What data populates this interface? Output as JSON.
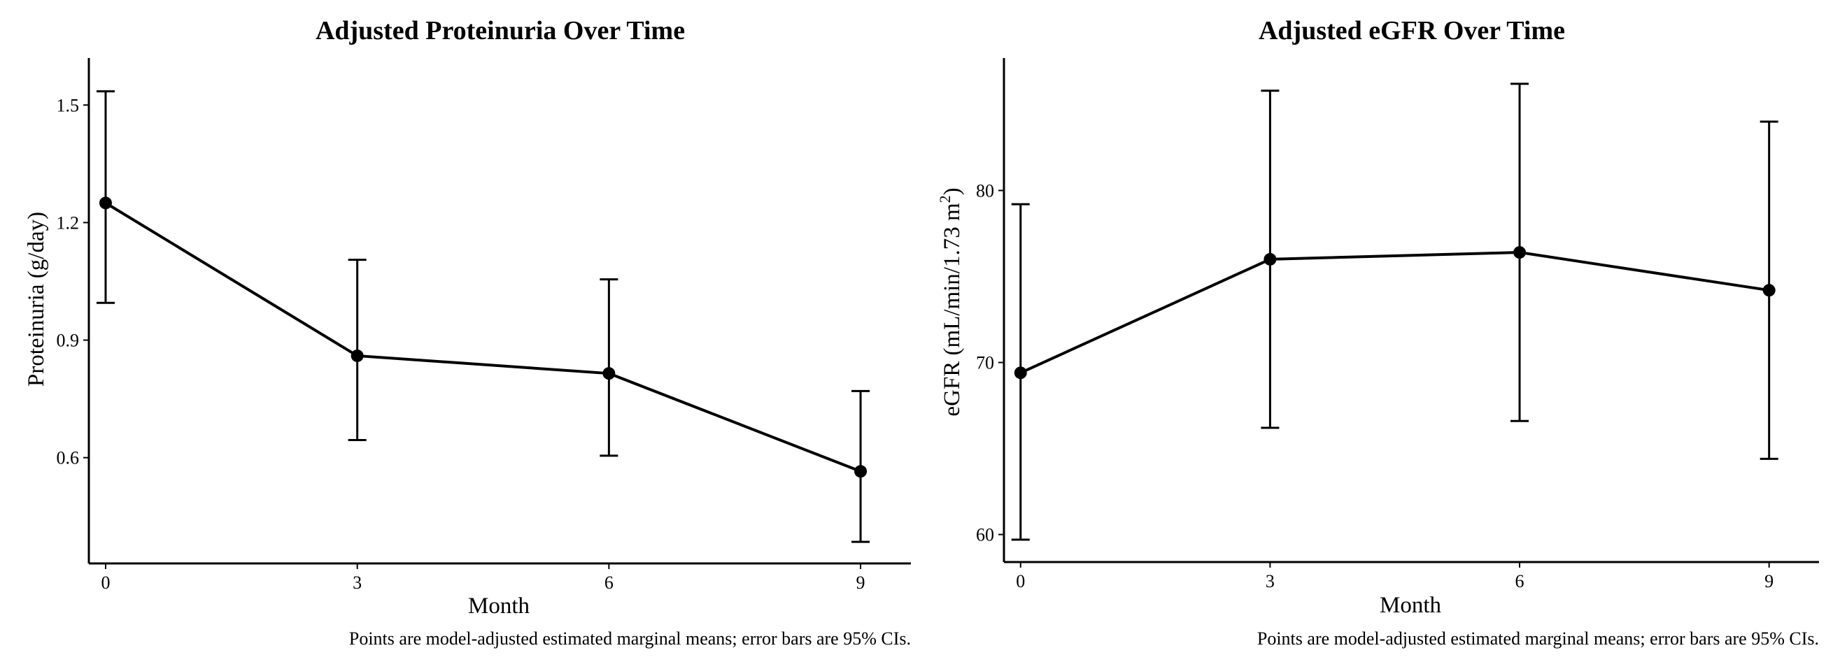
{
  "chart_data": [
    {
      "type": "line",
      "title": "Adjusted Proteinuria Over Time",
      "xlabel": "Month",
      "ylabel": "Proteinuria (g/day)",
      "caption": "Points are model-adjusted estimated marginal means; error bars are 95% CIs.",
      "x": [
        0,
        3,
        6,
        9
      ],
      "x_ticks": [
        "0",
        "3",
        "6",
        "9"
      ],
      "y_ticks": [
        "0.6",
        "0.9",
        "1.2",
        "1.5"
      ],
      "y_tick_values": [
        0.6,
        0.9,
        1.2,
        1.5
      ],
      "xlim": [
        -0.2,
        9.6
      ],
      "ylim": [
        0.33,
        1.62
      ],
      "series": [
        {
          "values": [
            1.25,
            0.86,
            0.815,
            0.565
          ],
          "ci_lower": [
            0.995,
            0.645,
            0.605,
            0.385
          ],
          "ci_upper": [
            1.535,
            1.105,
            1.055,
            0.77
          ]
        }
      ],
      "grid": false,
      "legend": "none",
      "color": "#000000"
    },
    {
      "type": "line",
      "title": "Adjusted eGFR Over Time",
      "xlabel": "Month",
      "ylabel_parts": [
        "eGFR (mL/min/1.73 m",
        "2",
        ")"
      ],
      "caption": "Points are model-adjusted estimated marginal means; error bars are 95% CIs.",
      "x": [
        0,
        3,
        6,
        9
      ],
      "x_ticks": [
        "0",
        "3",
        "6",
        "9"
      ],
      "y_ticks": [
        "60",
        "70",
        "80"
      ],
      "y_tick_values": [
        60,
        70,
        80
      ],
      "xlim": [
        -0.2,
        9.6
      ],
      "ylim": [
        58.4,
        87.7
      ],
      "series": [
        {
          "values": [
            69.4,
            76.0,
            76.4,
            74.2
          ],
          "ci_lower": [
            59.7,
            66.2,
            66.6,
            64.4
          ],
          "ci_upper": [
            79.2,
            85.8,
            86.2,
            84.0
          ]
        }
      ],
      "grid": false,
      "legend": "none",
      "color": "#000000"
    }
  ]
}
